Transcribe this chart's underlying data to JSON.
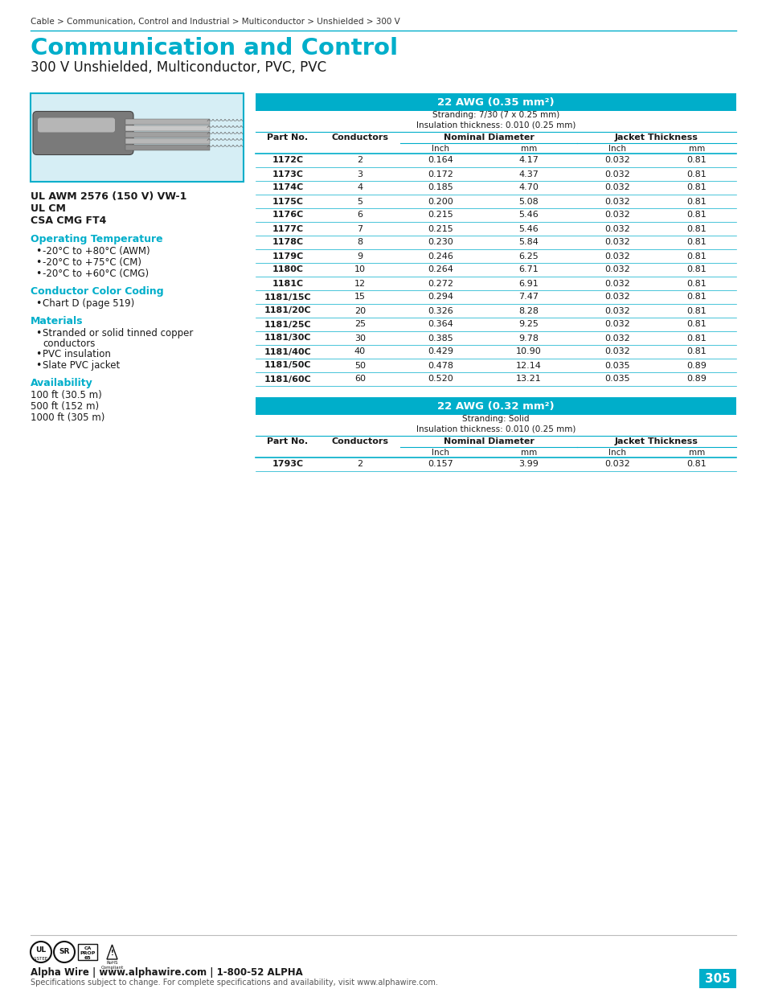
{
  "breadcrumb": "Cable > Communication, Control and Industrial > Multiconductor > Unshielded > 300 V",
  "title": "Communication and Control",
  "subtitle": "300 V Unshielded, Multiconductor, PVC, PVC",
  "teal_color": "#00AECA",
  "light_blue_bg": "#D6EEF5",
  "certifications": [
    "UL AWM 2576 (150 V) VW-1",
    "UL CM",
    "CSA CMG FT4"
  ],
  "op_temp_label": "Operating Temperature",
  "op_temp_items": [
    "-20°C to +80°C (AWM)",
    "-20°C to +75°C (CM)",
    "-20°C to +60°C (CMG)"
  ],
  "color_coding_label": "Conductor Color Coding",
  "color_coding_items": [
    "Chart D (page 519)"
  ],
  "materials_label": "Materials",
  "materials_items": [
    "Stranded or solid tinned copper conductors",
    "PVC insulation",
    "Slate PVC jacket"
  ],
  "materials_wrap": [
    "Stranded or solid tinned copper",
    "conductors"
  ],
  "availability_label": "Availability",
  "availability_items": [
    "100 ft (30.5 m)",
    "500 ft (152 m)",
    "1000 ft (305 m)"
  ],
  "table1_title": "22 AWG (0.35 mm²)",
  "table1_stranding": [
    "Stranding: 7/30 (7 x 0.25 mm)",
    "Insulation thickness: 0.010 (0.25 mm)"
  ],
  "table1_rows": [
    [
      "1172C",
      "2",
      "0.164",
      "4.17",
      "0.032",
      "0.81"
    ],
    [
      "1173C",
      "3",
      "0.172",
      "4.37",
      "0.032",
      "0.81"
    ],
    [
      "1174C",
      "4",
      "0.185",
      "4.70",
      "0.032",
      "0.81"
    ],
    [
      "1175C",
      "5",
      "0.200",
      "5.08",
      "0.032",
      "0.81"
    ],
    [
      "1176C",
      "6",
      "0.215",
      "5.46",
      "0.032",
      "0.81"
    ],
    [
      "1177C",
      "7",
      "0.215",
      "5.46",
      "0.032",
      "0.81"
    ],
    [
      "1178C",
      "8",
      "0.230",
      "5.84",
      "0.032",
      "0.81"
    ],
    [
      "1179C",
      "9",
      "0.246",
      "6.25",
      "0.032",
      "0.81"
    ],
    [
      "1180C",
      "10",
      "0.264",
      "6.71",
      "0.032",
      "0.81"
    ],
    [
      "1181C",
      "12",
      "0.272",
      "6.91",
      "0.032",
      "0.81"
    ],
    [
      "1181/15C",
      "15",
      "0.294",
      "7.47",
      "0.032",
      "0.81"
    ],
    [
      "1181/20C",
      "20",
      "0.326",
      "8.28",
      "0.032",
      "0.81"
    ],
    [
      "1181/25C",
      "25",
      "0.364",
      "9.25",
      "0.032",
      "0.81"
    ],
    [
      "1181/30C",
      "30",
      "0.385",
      "9.78",
      "0.032",
      "0.81"
    ],
    [
      "1181/40C",
      "40",
      "0.429",
      "10.90",
      "0.032",
      "0.81"
    ],
    [
      "1181/50C",
      "50",
      "0.478",
      "12.14",
      "0.035",
      "0.89"
    ],
    [
      "1181/60C",
      "60",
      "0.520",
      "13.21",
      "0.035",
      "0.89"
    ]
  ],
  "table2_title": "22 AWG (0.32 mm²)",
  "table2_stranding": [
    "Stranding: Solid",
    "Insulation thickness: 0.010 (0.25 mm)"
  ],
  "table2_rows": [
    [
      "1793C",
      "2",
      "0.157",
      "3.99",
      "0.032",
      "0.81"
    ]
  ],
  "footer_bold": "Alpha Wire | www.alphawire.com | 1-800-52 ALPHA",
  "footer_sub": "Specifications subject to change. For complete specifications and availability, visit www.alphawire.com.",
  "page_number": "305"
}
